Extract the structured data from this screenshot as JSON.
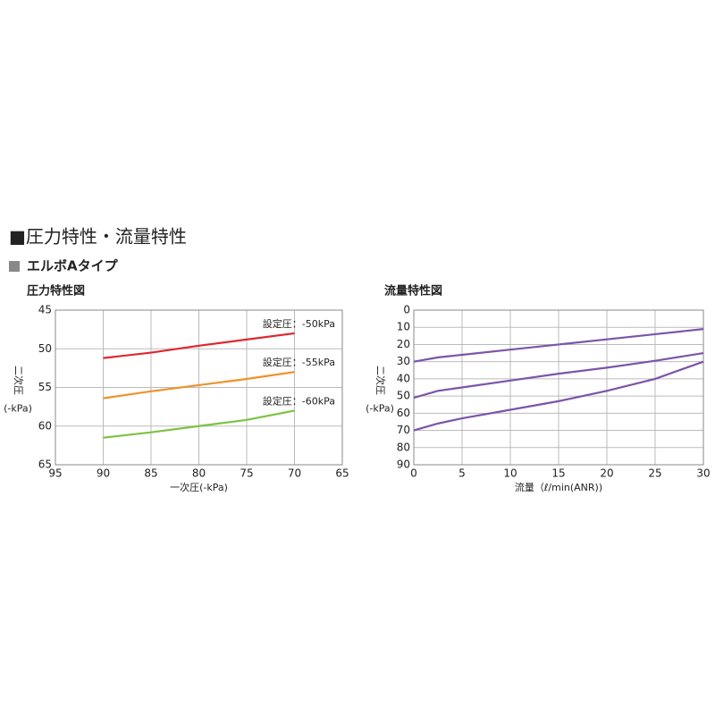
{
  "header": {
    "title": "■圧力特性・流量特性",
    "subtitle": "エルボAタイプ"
  },
  "chart_data": [
    {
      "type": "line",
      "title": "圧力特性図",
      "xlabel": "一次圧(-kPa)",
      "ylabel": "二次圧",
      "ylabel_unit": "(-kPa)",
      "xlim": [
        65,
        95
      ],
      "x_reversed": true,
      "xticks": [
        95,
        90,
        85,
        80,
        75,
        70,
        65
      ],
      "ylim": [
        45,
        65
      ],
      "y_reversed": true,
      "yticks": [
        45,
        50,
        55,
        60,
        65
      ],
      "grid": true,
      "series_labels": true,
      "series": [
        {
          "name": "設定圧：-50kPa",
          "color": "#e0262e",
          "x": [
            90,
            85,
            80,
            75,
            70
          ],
          "values": [
            51.2,
            50.5,
            49.6,
            48.8,
            48.0
          ]
        },
        {
          "name": "設定圧：-55kPa",
          "color": "#f0902a",
          "x": [
            90,
            85,
            80,
            75,
            70
          ],
          "values": [
            56.4,
            55.5,
            54.7,
            53.9,
            53.0
          ]
        },
        {
          "name": "設定圧：-60kPa",
          "color": "#7cc242",
          "x": [
            90,
            85,
            80,
            75,
            70
          ],
          "values": [
            61.5,
            60.8,
            60.0,
            59.2,
            58.0
          ]
        }
      ]
    },
    {
      "type": "line",
      "title": "流量特性図",
      "xlabel": "流量（ℓ/min(ANR))",
      "ylabel": "二次圧",
      "ylabel_unit": "(-kPa)",
      "xlim": [
        0,
        30
      ],
      "xticks": [
        0,
        5,
        10,
        15,
        20,
        25,
        30
      ],
      "ylim": [
        0,
        90
      ],
      "y_reversed": true,
      "yticks": [
        0,
        10,
        20,
        30,
        40,
        50,
        60,
        70,
        80,
        90
      ],
      "grid": true,
      "series": [
        {
          "color": "#7b55a8",
          "x": [
            0,
            2.5,
            5,
            10,
            15,
            20,
            25,
            30
          ],
          "values": [
            30,
            27.5,
            26,
            23,
            20,
            17,
            14,
            11
          ]
        },
        {
          "color": "#7b55a8",
          "x": [
            0,
            2.5,
            5,
            10,
            15,
            20,
            25,
            30
          ],
          "values": [
            51,
            47,
            45,
            41,
            37,
            33.5,
            29.5,
            25
          ]
        },
        {
          "color": "#7b55a8",
          "x": [
            0,
            2.5,
            5,
            10,
            15,
            20,
            25,
            30
          ],
          "values": [
            70,
            66,
            63,
            58,
            53,
            47,
            40,
            30
          ]
        }
      ]
    }
  ]
}
